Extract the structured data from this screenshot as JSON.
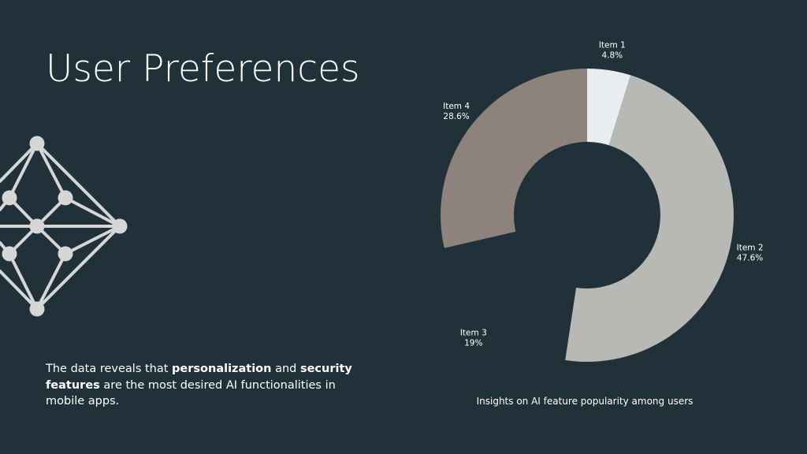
{
  "slide": {
    "title": "User Preferences",
    "body": {
      "p1": "The data reveals that ",
      "b1": "personalization",
      "p2": " and ",
      "b2": "security features",
      "p3": " are the most desired AI functionalities in mobile apps."
    }
  },
  "decor": {
    "icon": "network-diamond-icon",
    "color": "#d6d6d6"
  },
  "chart_data": {
    "type": "pie",
    "donut": true,
    "title": "",
    "caption": "Insights on AI feature popularity among users",
    "legend": "none",
    "categories": [
      "Item 1",
      "Item 2",
      "Item 3",
      "Item 4"
    ],
    "values": [
      4.8,
      47.6,
      19,
      28.6
    ],
    "value_labels": [
      "4.8%",
      "47.6%",
      "19%",
      "28.6%"
    ],
    "colors": [
      "#e9edf0",
      "#b8b8b4",
      "#21313a",
      "#8d827c"
    ],
    "start_angle_deg": 0,
    "direction": "clockwise"
  }
}
